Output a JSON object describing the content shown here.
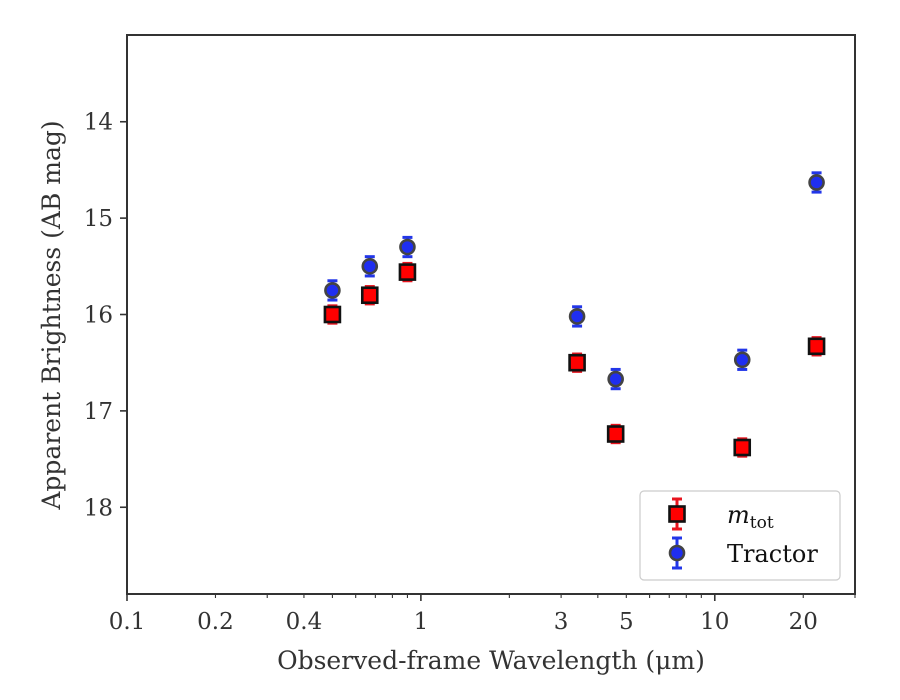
{
  "chart_data": {
    "type": "scatter",
    "xlabel": "Observed-frame Wavelength (μm)",
    "ylabel": "Apparent Brightness (AB mag)",
    "xscale": "log",
    "xlim": [
      0.1,
      30
    ],
    "ylim": [
      18.9,
      13.1
    ],
    "y_inverted": true,
    "grid": false,
    "x_ticks": [
      {
        "value": 0.1,
        "label": "0.1"
      },
      {
        "value": 0.2,
        "label": "0.2"
      },
      {
        "value": 0.4,
        "label": "0.4"
      },
      {
        "value": 1,
        "label": "1"
      },
      {
        "value": 3,
        "label": "3"
      },
      {
        "value": 5,
        "label": "5"
      },
      {
        "value": 10,
        "label": "10"
      },
      {
        "value": 20,
        "label": "20"
      }
    ],
    "y_ticks": [
      {
        "value": 14,
        "label": "14"
      },
      {
        "value": 15,
        "label": "15"
      },
      {
        "value": 16,
        "label": "16"
      },
      {
        "value": 17,
        "label": "17"
      },
      {
        "value": 18,
        "label": "18"
      }
    ],
    "legend_position": "bottom-right",
    "series": [
      {
        "name": "m",
        "name_sub": "tot",
        "marker": "square",
        "color": "#ff0000",
        "edge_color": "#111111",
        "errbar_color": "#e8141e",
        "x": [
          0.5,
          0.67,
          0.9,
          3.4,
          4.6,
          12.4,
          22.2
        ],
        "y": [
          16.0,
          15.8,
          15.56,
          16.5,
          17.24,
          17.38,
          16.33
        ],
        "yerr": [
          0.09,
          0.09,
          0.09,
          0.09,
          0.09,
          0.09,
          0.09
        ]
      },
      {
        "name": "Tractor",
        "marker": "circle",
        "color": "#1f2ef0",
        "edge_color": "#444444",
        "errbar_color": "#2236e8",
        "x": [
          0.5,
          0.67,
          0.9,
          3.4,
          4.6,
          12.4,
          22.2
        ],
        "y": [
          15.75,
          15.5,
          15.3,
          16.02,
          16.67,
          16.47,
          14.63
        ],
        "yerr": [
          0.1,
          0.1,
          0.1,
          0.1,
          0.1,
          0.1,
          0.1
        ]
      }
    ]
  }
}
